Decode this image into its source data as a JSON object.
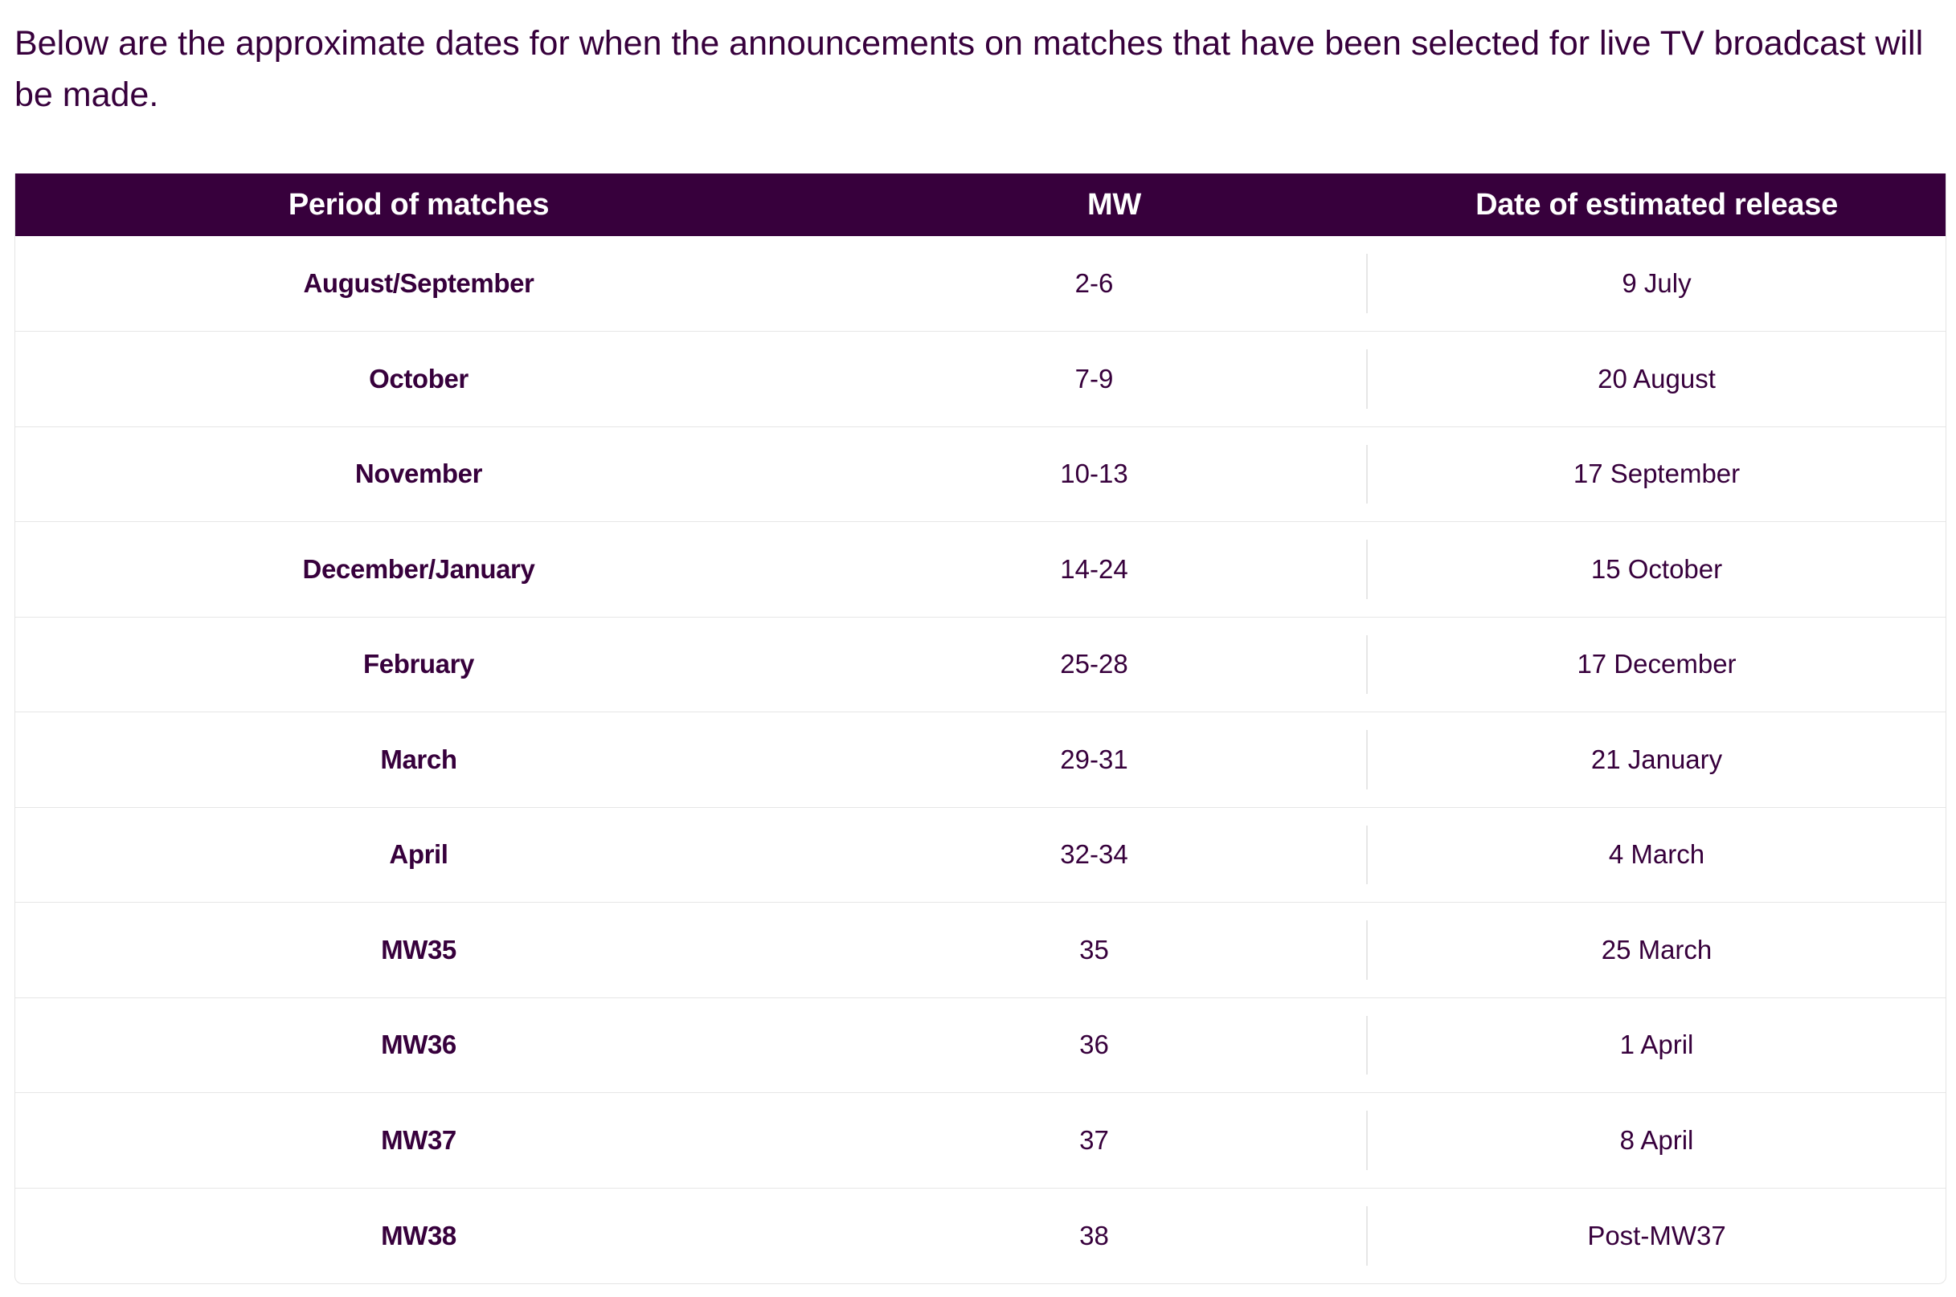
{
  "intro_text": "Below are the approximate dates for when the announcements on matches that have been selected for live TV broadcast will be made.",
  "colors": {
    "header_bg": "#37003c",
    "header_text": "#ffffff",
    "body_text": "#37003c",
    "row_divider": "#e6e6e6"
  },
  "table": {
    "headers": [
      "Period of matches",
      "MW",
      "Date of estimated release"
    ],
    "rows": [
      {
        "period": "August/September",
        "mw": "2-6",
        "date": "9 July"
      },
      {
        "period": "October",
        "mw": "7-9",
        "date": "20 August"
      },
      {
        "period": "November",
        "mw": "10-13",
        "date": "17 September"
      },
      {
        "period": "December/January",
        "mw": "14-24",
        "date": "15 October"
      },
      {
        "period": "February",
        "mw": "25-28",
        "date": "17 December"
      },
      {
        "period": "March",
        "mw": "29-31",
        "date": "21 January"
      },
      {
        "period": "April",
        "mw": "32-34",
        "date": "4 March"
      },
      {
        "period": "MW35",
        "mw": "35",
        "date": "25 March"
      },
      {
        "period": "MW36",
        "mw": "36",
        "date": "1 April"
      },
      {
        "period": "MW37",
        "mw": "37",
        "date": "8 April"
      },
      {
        "period": "MW38",
        "mw": "38",
        "date": "Post-MW37"
      }
    ]
  }
}
